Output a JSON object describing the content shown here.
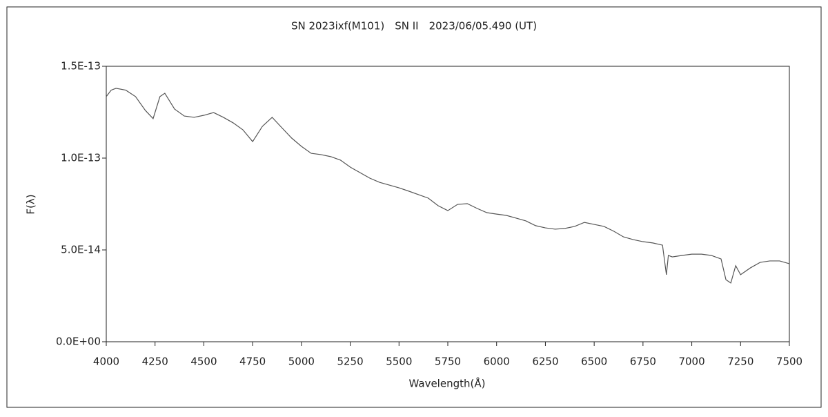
{
  "chart_data": {
    "type": "line",
    "title": "SN 2023ixf(M101)　SN II　2023/06/05.490 (UT)",
    "xlabel": "Wavelength(Å)",
    "ylabel": "F(λ)",
    "x": [
      4000,
      4025,
      4050,
      4100,
      4150,
      4200,
      4240,
      4275,
      4300,
      4350,
      4400,
      4450,
      4500,
      4550,
      4600,
      4650,
      4700,
      4750,
      4800,
      4850,
      4900,
      4950,
      5000,
      5050,
      5100,
      5150,
      5200,
      5250,
      5300,
      5350,
      5400,
      5450,
      5500,
      5550,
      5600,
      5650,
      5700,
      5750,
      5800,
      5850,
      5900,
      5950,
      6000,
      6050,
      6100,
      6150,
      6200,
      6250,
      6300,
      6350,
      6400,
      6450,
      6500,
      6550,
      6600,
      6650,
      6700,
      6750,
      6800,
      6850,
      6870,
      6880,
      6900,
      6950,
      7000,
      7050,
      7100,
      7150,
      7175,
      7200,
      7225,
      7250,
      7300,
      7350,
      7400,
      7450,
      7500
    ],
    "series": [
      {
        "color": "#555555",
        "values": [
          1.335e-13,
          1.37e-13,
          1.38e-13,
          1.37e-13,
          1.335e-13,
          1.26e-13,
          1.215e-13,
          1.335e-13,
          1.353e-13,
          1.267e-13,
          1.229e-13,
          1.222e-13,
          1.233e-13,
          1.248e-13,
          1.222e-13,
          1.192e-13,
          1.154e-13,
          1.09e-13,
          1.173e-13,
          1.222e-13,
          1.165e-13,
          1.109e-13,
          1.064e-13,
          1.026e-13,
          1.019e-13,
          1.008e-13,
          9.89e-14,
          9.51e-14,
          9.21e-14,
          8.91e-14,
          8.68e-14,
          8.53e-14,
          8.38e-14,
          8.2e-14,
          8.01e-14,
          7.82e-14,
          7.41e-14,
          7.14e-14,
          7.48e-14,
          7.52e-14,
          7.26e-14,
          7.03e-14,
          6.95e-14,
          6.88e-14,
          6.73e-14,
          6.58e-14,
          6.32e-14,
          6.2e-14,
          6.13e-14,
          6.17e-14,
          6.28e-14,
          6.5e-14,
          6.39e-14,
          6.28e-14,
          6.02e-14,
          5.71e-14,
          5.56e-14,
          5.45e-14,
          5.38e-14,
          5.26e-14,
          3.65e-14,
          4.7e-14,
          4.62e-14,
          4.7e-14,
          4.77e-14,
          4.77e-14,
          4.7e-14,
          4.51e-14,
          3.38e-14,
          3.2e-14,
          4.14e-14,
          3.65e-14,
          4.02e-14,
          4.32e-14,
          4.4e-14,
          4.4e-14,
          4.25e-14
        ]
      }
    ],
    "xlim": [
      4000,
      7500
    ],
    "xticks": [
      4000,
      4250,
      4500,
      4750,
      5000,
      5250,
      5500,
      5750,
      6000,
      6250,
      6500,
      6750,
      7000,
      7250,
      7500
    ],
    "ylim": [
      0,
      1.5e-13
    ],
    "yticks": [
      {
        "value": 0,
        "label": "0.0E+00"
      },
      {
        "value": 5e-14,
        "label": "5.0E-14"
      },
      {
        "value": 1e-13,
        "label": "1.0E-13"
      },
      {
        "value": 1.5e-13,
        "label": "1.5E-13"
      }
    ],
    "grid": false
  }
}
